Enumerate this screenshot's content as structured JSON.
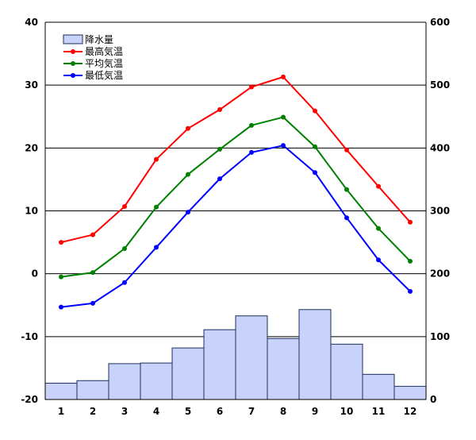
{
  "chart_data": {
    "type": "bar+line",
    "categories": [
      "1",
      "2",
      "3",
      "4",
      "5",
      "6",
      "7",
      "8",
      "9",
      "10",
      "11",
      "12"
    ],
    "left_axis": {
      "min": -20,
      "max": 40,
      "ticks": [
        -20,
        -10,
        0,
        10,
        20,
        30,
        40
      ]
    },
    "right_axis": {
      "min": 0,
      "max": 600,
      "ticks": [
        0,
        100,
        200,
        300,
        400,
        500,
        600
      ]
    },
    "grid": true,
    "legend_position": "top-left",
    "bars": {
      "name": "降水量",
      "axis": "right",
      "color": "#c8d2fa",
      "values": [
        26,
        30,
        57,
        58,
        82,
        111,
        133,
        97,
        143,
        88,
        40,
        21
      ]
    },
    "series": [
      {
        "name": "最高気温",
        "axis": "left",
        "color": "#ff0000",
        "values": [
          5.0,
          6.2,
          10.7,
          18.2,
          23.1,
          26.1,
          29.7,
          31.3,
          25.9,
          19.7,
          13.9,
          8.2
        ]
      },
      {
        "name": "平均気温",
        "axis": "left",
        "color": "#008000",
        "values": [
          -0.5,
          0.2,
          4.0,
          10.6,
          15.8,
          19.8,
          23.6,
          24.9,
          20.2,
          13.4,
          7.2,
          2.0
        ]
      },
      {
        "name": "最低気温",
        "axis": "left",
        "color": "#0000ff",
        "values": [
          -5.3,
          -4.7,
          -1.4,
          4.2,
          9.8,
          15.1,
          19.3,
          20.4,
          16.1,
          8.9,
          2.2,
          -2.8
        ]
      }
    ]
  }
}
